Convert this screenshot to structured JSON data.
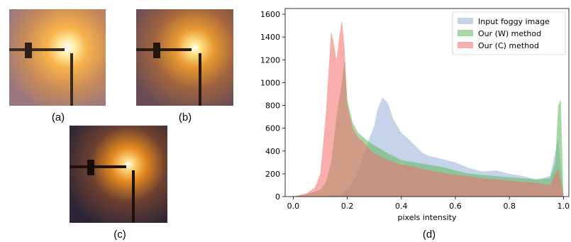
{
  "panels": [
    {
      "caption": "(a)"
    },
    {
      "caption": "(b)"
    },
    {
      "caption": "(c)"
    },
    {
      "caption": "(d)"
    }
  ],
  "colors": {
    "input": "#9fb8d8",
    "w_method": "#5cb85c",
    "c_method": "#f46b6b"
  },
  "chart_data": {
    "type": "bar",
    "subtype": "histogram-overlay",
    "xlabel": "pixels intensity",
    "ylabel": "",
    "xlim": [
      -0.03,
      1.02
    ],
    "ylim": [
      0,
      1650
    ],
    "xticks": [
      "0.0",
      "0.2",
      "0.4",
      "0.6",
      "0.8",
      "1.0"
    ],
    "yticks": [
      "0",
      "200",
      "400",
      "600",
      "800",
      "1000",
      "1200",
      "1400",
      "1600"
    ],
    "legend_position": "top-right",
    "series": [
      {
        "name": "Input foggy image",
        "x": [
          0.0,
          0.05,
          0.1,
          0.15,
          0.18,
          0.2,
          0.22,
          0.24,
          0.26,
          0.28,
          0.3,
          0.31,
          0.33,
          0.35,
          0.37,
          0.4,
          0.42,
          0.45,
          0.48,
          0.5,
          0.55,
          0.6,
          0.65,
          0.7,
          0.75,
          0.8,
          0.85,
          0.9,
          0.95,
          0.98,
          1.0
        ],
        "values": [
          0,
          0,
          0,
          10,
          20,
          60,
          120,
          220,
          380,
          500,
          620,
          750,
          870,
          820,
          680,
          560,
          520,
          450,
          380,
          360,
          330,
          300,
          250,
          220,
          230,
          200,
          180,
          150,
          180,
          500,
          0
        ]
      },
      {
        "name": "Our (W) method",
        "x": [
          0.0,
          0.05,
          0.1,
          0.12,
          0.14,
          0.16,
          0.18,
          0.19,
          0.2,
          0.22,
          0.24,
          0.26,
          0.28,
          0.3,
          0.35,
          0.4,
          0.45,
          0.5,
          0.55,
          0.6,
          0.65,
          0.7,
          0.75,
          0.8,
          0.85,
          0.9,
          0.95,
          0.97,
          0.98,
          0.99,
          1.0
        ],
        "values": [
          0,
          20,
          60,
          120,
          300,
          700,
          1000,
          1200,
          850,
          650,
          560,
          520,
          480,
          450,
          380,
          320,
          300,
          280,
          260,
          230,
          200,
          190,
          180,
          170,
          160,
          150,
          160,
          300,
          800,
          850,
          0
        ]
      },
      {
        "name": "Our (C) method",
        "x": [
          0.0,
          0.05,
          0.08,
          0.1,
          0.12,
          0.14,
          0.15,
          0.16,
          0.17,
          0.18,
          0.19,
          0.2,
          0.22,
          0.24,
          0.26,
          0.28,
          0.3,
          0.35,
          0.4,
          0.45,
          0.5,
          0.55,
          0.6,
          0.65,
          0.7,
          0.75,
          0.8,
          0.85,
          0.9,
          0.95,
          0.98,
          1.0
        ],
        "values": [
          0,
          30,
          80,
          200,
          700,
          1450,
          1350,
          1200,
          1400,
          1550,
          1300,
          800,
          600,
          520,
          480,
          420,
          380,
          320,
          280,
          260,
          230,
          210,
          190,
          180,
          160,
          150,
          140,
          130,
          120,
          100,
          250,
          0
        ]
      }
    ]
  }
}
